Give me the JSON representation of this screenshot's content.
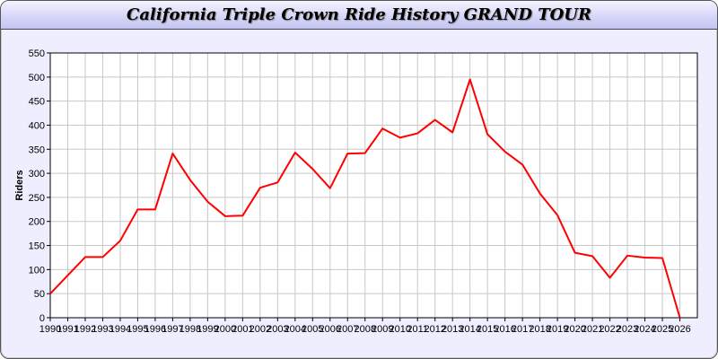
{
  "chart_data": {
    "type": "line",
    "title": "California Triple Crown Ride History GRAND TOUR",
    "xlabel": "",
    "ylabel": "Riders",
    "xlim": [
      1990,
      2027
    ],
    "ylim": [
      0,
      550
    ],
    "grid": true,
    "yticks": [
      0,
      50,
      100,
      150,
      200,
      250,
      300,
      350,
      400,
      450,
      500,
      550
    ],
    "series": [
      {
        "color": "#ff0000",
        "x": [
          1990,
          1991,
          1992,
          1993,
          1994,
          1995,
          1996,
          1997,
          1998,
          1999,
          2000,
          2001,
          2002,
          2003,
          2004,
          2005,
          2006,
          2007,
          2008,
          2009,
          2010,
          2011,
          2012,
          2013,
          2014,
          2015,
          2016,
          2017,
          2018,
          2019,
          2020,
          2021,
          2022,
          2023,
          2024,
          2025,
          2026
        ],
        "values": [
          50,
          88,
          126,
          126,
          160,
          225,
          225,
          341,
          286,
          241,
          211,
          212,
          270,
          281,
          343,
          309,
          269,
          341,
          342,
          393,
          374,
          383,
          411,
          385,
          495,
          381,
          345,
          318,
          258,
          213,
          135,
          128,
          83,
          129,
          125,
          124,
          0
        ]
      }
    ]
  }
}
